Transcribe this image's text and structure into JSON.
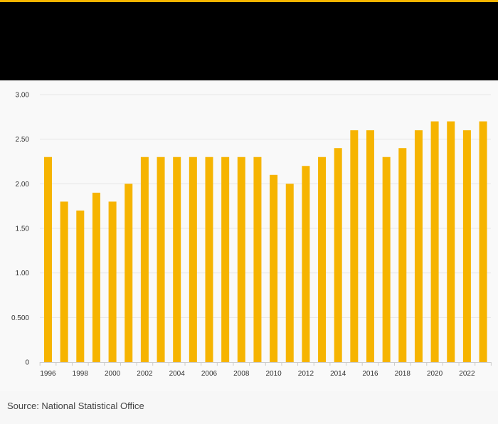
{
  "colors": {
    "accent": "#f6b400",
    "header_bg": "#000000",
    "bar": "#f6b400",
    "grid": "#e6e6e6",
    "axis": "#cccccc",
    "text": "#333333"
  },
  "footer": {
    "source": "Source: National Statistical Office"
  },
  "chart_data": {
    "type": "bar",
    "title": "",
    "xlabel": "",
    "ylabel": "",
    "categories": [
      1996,
      1997,
      1998,
      1999,
      2000,
      2001,
      2002,
      2003,
      2004,
      2005,
      2006,
      2007,
      2008,
      2009,
      2010,
      2011,
      2012,
      2013,
      2014,
      2015,
      2016,
      2017,
      2018,
      2019,
      2020,
      2021,
      2022,
      2023
    ],
    "values": [
      2.3,
      1.8,
      1.7,
      1.9,
      1.8,
      2.0,
      2.3,
      2.3,
      2.3,
      2.3,
      2.3,
      2.3,
      2.3,
      2.3,
      2.1,
      2.0,
      2.2,
      2.3,
      2.4,
      2.6,
      2.6,
      2.3,
      2.4,
      2.6,
      2.7,
      2.7,
      2.6,
      2.7
    ],
    "ylim": [
      0,
      3
    ],
    "yticks": [
      0,
      0.5,
      1,
      1.5,
      2,
      2.5,
      3
    ],
    "ytick_labels": [
      "0",
      "0.500",
      "1.00",
      "1.50",
      "2.00",
      "2.50",
      "3.00"
    ],
    "xtick_labels": [
      "1996",
      "1998",
      "2000",
      "2002",
      "2004",
      "2006",
      "2008",
      "2010",
      "2012",
      "2014",
      "2016",
      "2018",
      "2020",
      "2022"
    ],
    "grid": true,
    "legend": "none"
  }
}
